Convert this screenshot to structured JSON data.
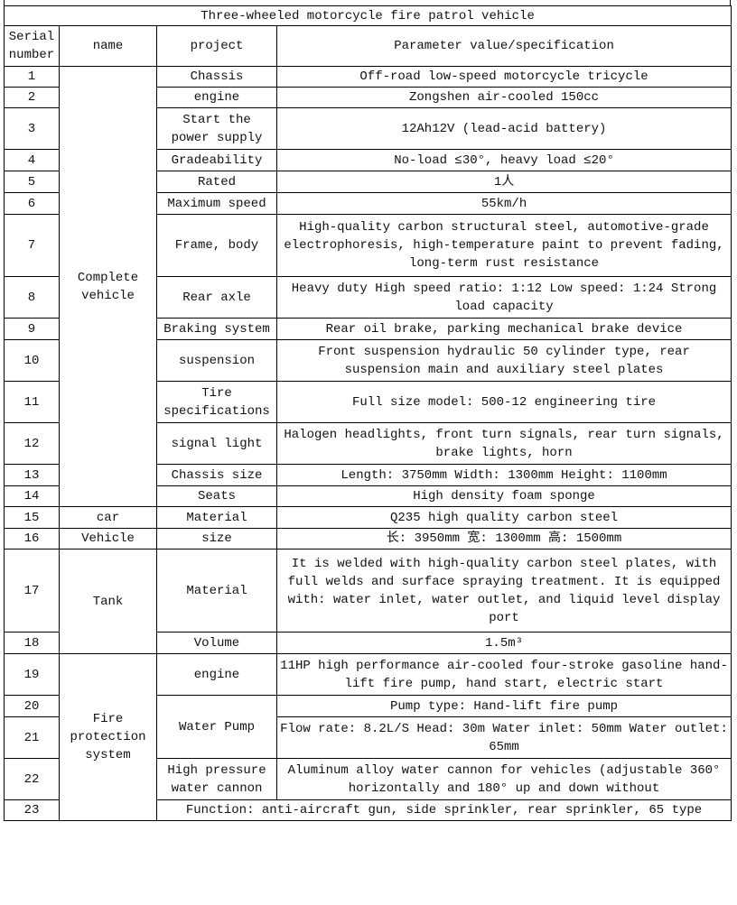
{
  "title": "Three-wheeled motorcycle fire patrol vehicle",
  "headers": [
    "Serial number",
    "name",
    "project",
    "Parameter value/specification"
  ],
  "rows": [
    {
      "serial": "1",
      "name": "Complete vehicle",
      "project": "Chassis",
      "value": "Off-road low-speed motorcycle tricycle"
    },
    {
      "serial": "2",
      "project": "engine",
      "value": "Zongshen air-cooled 150cc"
    },
    {
      "serial": "3",
      "project": "Start the power supply",
      "value": "12Ah12V (lead-acid battery)"
    },
    {
      "serial": "4",
      "project": "Gradeability",
      "value": "No-load ≤30°, heavy load ≤20°"
    },
    {
      "serial": "5",
      "project": "Rated",
      "value": "1人"
    },
    {
      "serial": "6",
      "project": "Maximum speed",
      "value": "55km/h"
    },
    {
      "serial": "7",
      "project": "Frame, body",
      "value": "High-quality carbon structural steel, automotive-grade electrophoresis, high-temperature paint to prevent fading, long-term rust resistance"
    },
    {
      "serial": "8",
      "project": "Rear axle",
      "value": "Heavy duty High speed ratio: 1:12 Low speed: 1:24 Strong load capacity"
    },
    {
      "serial": "9",
      "project": "Braking system",
      "value": "Rear oil brake, parking mechanical brake device"
    },
    {
      "serial": "10",
      "project": "suspension",
      "value": "Front suspension hydraulic 50 cylinder type, rear suspension main and auxiliary steel plates"
    },
    {
      "serial": "11",
      "project": "Tire specifications",
      "value": "Full size model: 500-12 engineering tire"
    },
    {
      "serial": "12",
      "project": "signal light",
      "value": "Halogen headlights, front turn signals, rear turn signals, brake lights, horn"
    },
    {
      "serial": "13",
      "project": "Chassis size",
      "value": "Length: 3750mm Width: 1300mm Height: 1100mm"
    },
    {
      "serial": "14",
      "project": "Seats",
      "value": "High density foam sponge"
    },
    {
      "serial": "15",
      "name": "car",
      "project": "Material",
      "value": "Q235 high quality carbon steel"
    },
    {
      "serial": "16",
      "name": "Vehicle",
      "project": "size",
      "value": "长: 3950mm 宽: 1300mm 高: 1500mm"
    },
    {
      "serial": "17",
      "name": "Tank",
      "project": "Material",
      "value": "It is welded with high-quality carbon steel plates, with full welds and surface spraying treatment. It is equipped with: water inlet, water outlet, and liquid level display port"
    },
    {
      "serial": "18",
      "project": "Volume",
      "value": "1.5m³"
    },
    {
      "serial": "19",
      "name": "Fire protection system",
      "project": "engine",
      "value": "11HP high performance air-cooled four-stroke gasoline hand-lift fire pump, hand start, electric start"
    },
    {
      "serial": "20",
      "project": "Water Pump",
      "value": "Pump type: Hand-lift fire pump"
    },
    {
      "serial": "21",
      "value": "Flow rate: 8.2L/S Head: 30m Water inlet: 50mm Water outlet: 65mm"
    },
    {
      "serial": "22",
      "project": "High pressure water cannon",
      "value": "Aluminum alloy water cannon for vehicles (adjustable 360° horizontally and 180° up and down without"
    },
    {
      "serial": "23",
      "value": "Function: anti-aircraft gun, side sprinkler, rear sprinkler, 65 type"
    }
  ]
}
